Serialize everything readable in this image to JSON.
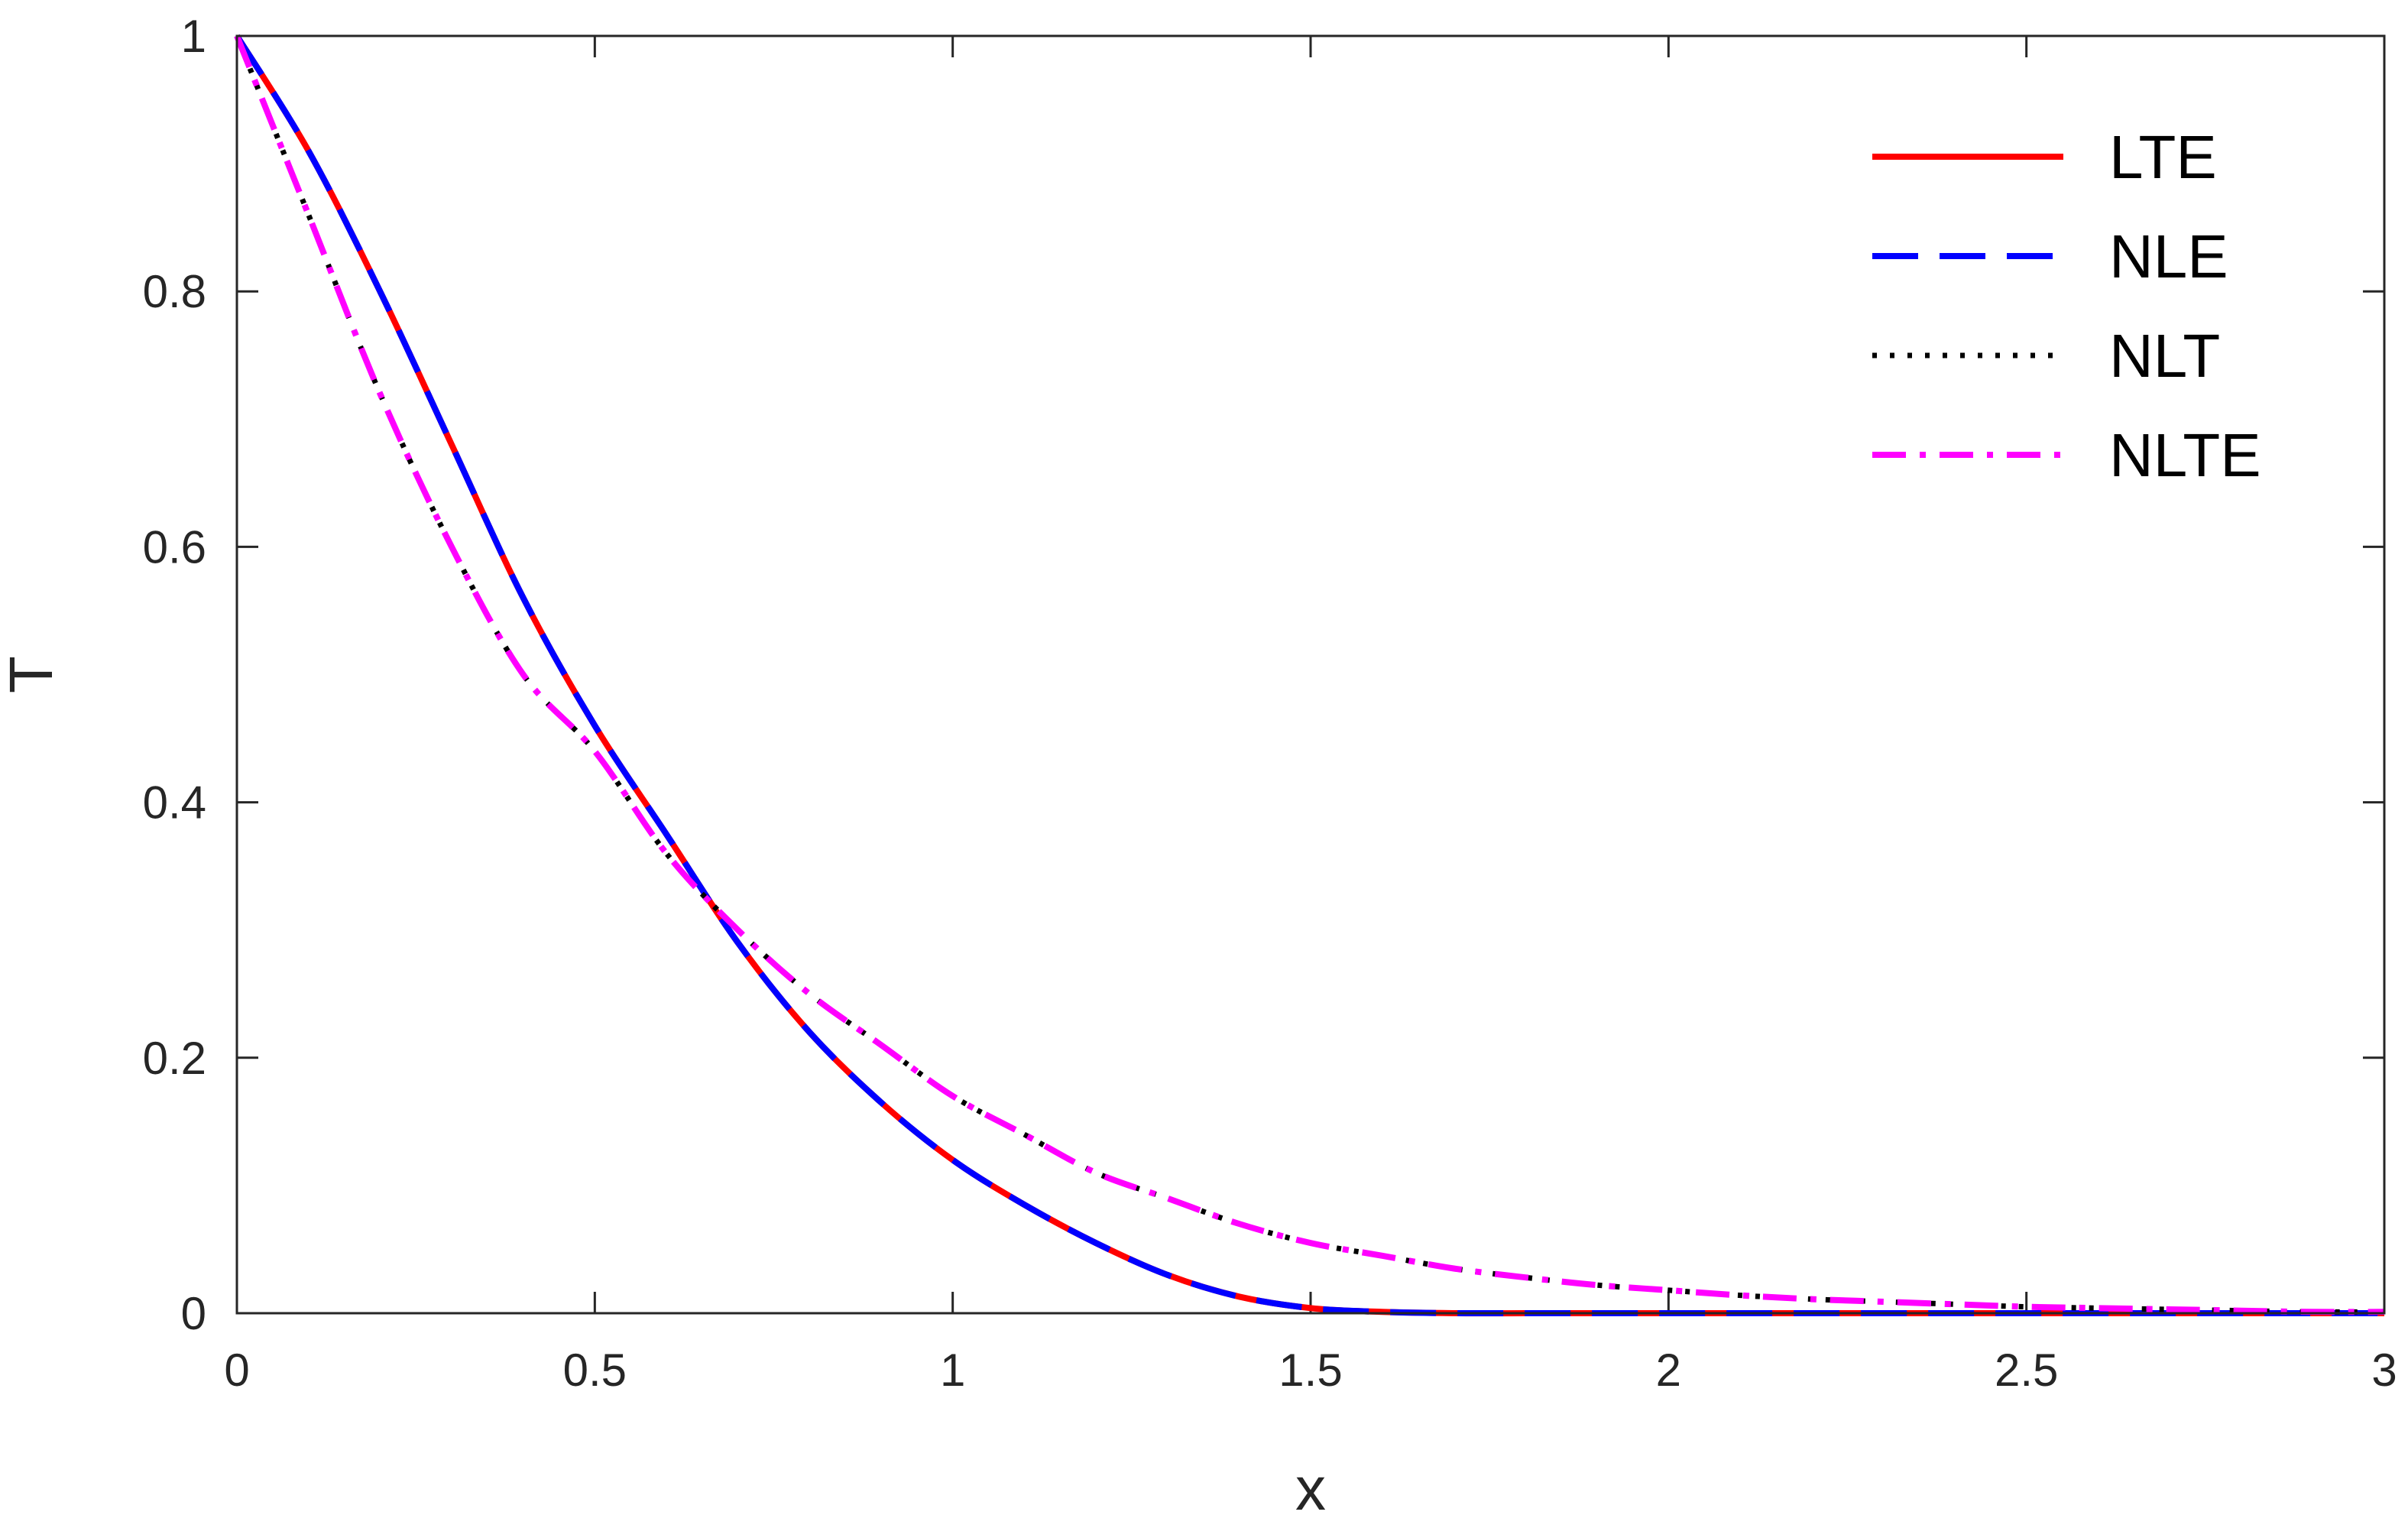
{
  "chart_data": {
    "type": "line",
    "title": "",
    "xlabel": "x",
    "ylabel": "T",
    "xlim": [
      0,
      3
    ],
    "ylim": [
      0,
      1
    ],
    "xticks": [
      "0",
      "0.5",
      "1",
      "1.5",
      "2",
      "2.5",
      "3"
    ],
    "yticks": [
      "0",
      "0.2",
      "0.4",
      "0.6",
      "0.8",
      "1"
    ],
    "grid": false,
    "legend": {
      "position": "top-right",
      "entries": [
        "LTE",
        "NLE",
        "NLT",
        "NLTE"
      ]
    },
    "x": [
      0,
      0.1,
      0.2,
      0.3,
      0.4,
      0.5,
      0.6,
      0.7,
      0.8,
      0.9,
      1.0,
      1.1,
      1.2,
      1.3,
      1.4,
      1.5,
      1.6,
      1.7,
      1.8,
      1.9,
      2.0,
      2.1,
      2.2,
      2.3,
      2.4,
      2.5,
      2.6,
      2.7,
      2.8,
      2.9,
      3.0
    ],
    "series": [
      {
        "name": "LTE",
        "color": "#ff0000",
        "dash": "solid",
        "values": [
          1.0,
          0.91,
          0.8,
          0.68,
          0.56,
          0.46,
          0.375,
          0.29,
          0.22,
          0.165,
          0.12,
          0.085,
          0.055,
          0.03,
          0.013,
          0.004,
          0.001,
          0,
          0,
          0,
          0,
          0,
          0,
          0,
          0,
          0,
          0,
          0,
          0,
          0,
          0
        ]
      },
      {
        "name": "NLE",
        "color": "#0000ff",
        "dash": "dashed",
        "values": [
          1.0,
          0.91,
          0.8,
          0.68,
          0.56,
          0.46,
          0.375,
          0.29,
          0.22,
          0.165,
          0.12,
          0.085,
          0.055,
          0.03,
          0.013,
          0.004,
          0.001,
          0,
          0,
          0,
          0,
          0,
          0,
          0,
          0,
          0,
          0,
          0,
          0,
          0,
          0
        ]
      },
      {
        "name": "NLT",
        "color": "#000000",
        "dash": "dotted",
        "values": [
          1.0,
          0.86,
          0.72,
          0.6,
          0.5,
          0.44,
          0.36,
          0.3,
          0.25,
          0.21,
          0.17,
          0.14,
          0.11,
          0.09,
          0.07,
          0.055,
          0.045,
          0.035,
          0.028,
          0.022,
          0.018,
          0.014,
          0.011,
          0.009,
          0.007,
          0.005,
          0.004,
          0.003,
          0.002,
          0.001,
          0.001
        ]
      },
      {
        "name": "NLTE",
        "color": "#ff00ff",
        "dash": "dashdot",
        "values": [
          1.0,
          0.86,
          0.72,
          0.6,
          0.5,
          0.44,
          0.36,
          0.3,
          0.25,
          0.21,
          0.17,
          0.14,
          0.11,
          0.09,
          0.07,
          0.055,
          0.045,
          0.035,
          0.028,
          0.022,
          0.018,
          0.014,
          0.011,
          0.009,
          0.007,
          0.005,
          0.004,
          0.003,
          0.002,
          0.001,
          0.001
        ]
      }
    ]
  }
}
